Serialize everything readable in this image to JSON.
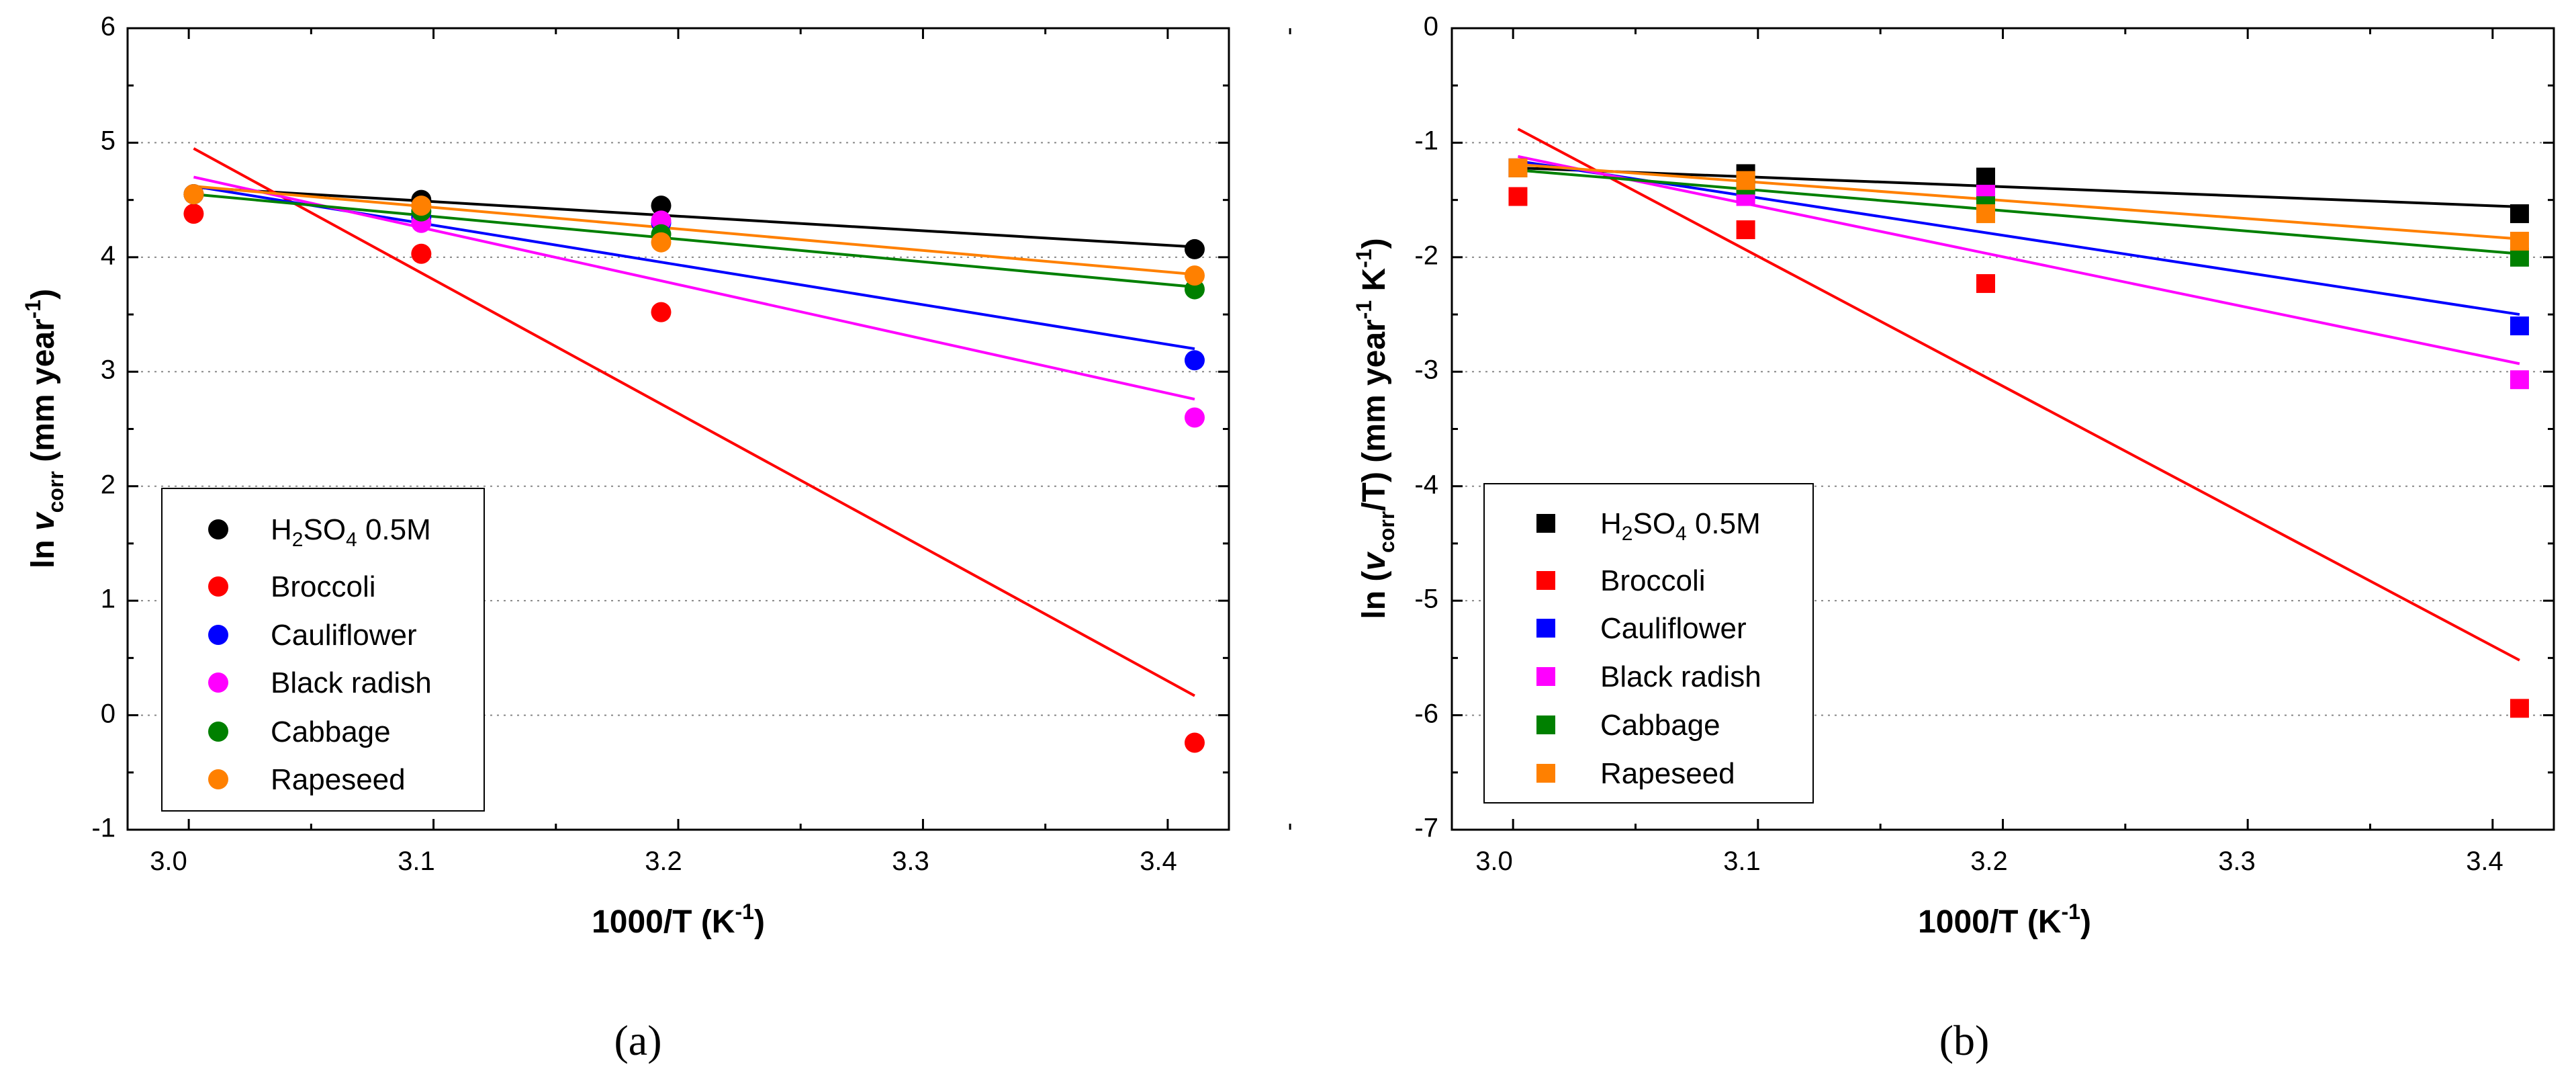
{
  "chart_data": [
    {
      "type": "scatter",
      "panel_label": "(a)",
      "xlabel": "1000/T (K",
      "xlabel_sup": "-1",
      "xlabel_tail": ")",
      "ylabel": {
        "pre": "ln ",
        "v": "v",
        "sub": "corr",
        "mid": " (mm year",
        "sup": "-1",
        "post": ")"
      },
      "xlim": [
        2.975,
        3.425
      ],
      "ylim": [
        -1,
        6
      ],
      "xticks": [
        "3.0",
        "3.1",
        "3.2",
        "3.3",
        "3.4"
      ],
      "yticks": [
        "-1",
        "0",
        "1",
        "2",
        "3",
        "4",
        "5",
        "6"
      ],
      "grid": "horizontal dotted",
      "marker": "circle",
      "x": [
        3.002,
        3.095,
        3.193,
        3.411
      ],
      "series": [
        {
          "name": "H2SO4 0.5M",
          "color": "#000000",
          "values": [
            4.55,
            4.5,
            4.45,
            4.07
          ],
          "fit": [
            4.61,
            4.09
          ]
        },
        {
          "name": "Broccoli",
          "color": "#ff0000",
          "values": [
            4.38,
            4.03,
            3.52,
            -0.24
          ],
          "fit": [
            4.95,
            0.17
          ]
        },
        {
          "name": "Cauliflower",
          "color": "#0000ff",
          "values": [
            4.55,
            4.35,
            4.3,
            3.1
          ],
          "fit": [
            4.62,
            3.2
          ]
        },
        {
          "name": "Black radish",
          "color": "#ff00ff",
          "values": [
            4.55,
            4.3,
            4.32,
            2.6
          ],
          "fit": [
            4.7,
            2.76
          ]
        },
        {
          "name": "Cabbage",
          "color": "#008000",
          "values": [
            4.55,
            4.4,
            4.2,
            3.72
          ],
          "fit": [
            4.55,
            3.74
          ]
        },
        {
          "name": "Rapeseed",
          "color": "#ff8000",
          "values": [
            4.55,
            4.45,
            4.13,
            3.84
          ],
          "fit": [
            4.62,
            3.85
          ]
        }
      ],
      "legend": {
        "h2so4_pre": "H",
        "h2so4_sub1": "2",
        "h2so4_mid": "SO",
        "h2so4_sub2": "4",
        "h2so4_post": " 0.5M",
        "position": "bottom-left"
      }
    },
    {
      "type": "scatter",
      "panel_label": "(b)",
      "xlabel": "1000/T (K",
      "xlabel_sup": "-1",
      "xlabel_tail": ")",
      "ylabel": {
        "pre": "ln (",
        "v": "v",
        "sub": "corr",
        "mid": "/T) (mm year",
        "sup": "-1",
        "mid2": " K",
        "sup2": "-1",
        "post": ")"
      },
      "xlim": [
        2.975,
        3.425
      ],
      "ylim": [
        -7,
        0
      ],
      "xticks": [
        "3.0",
        "3.1",
        "3.2",
        "3.3",
        "3.4"
      ],
      "yticks": [
        "-7",
        "-6",
        "-5",
        "-4",
        "-3",
        "-2",
        "-1",
        "0"
      ],
      "grid": "horizontal dotted",
      "marker": "square",
      "x": [
        3.002,
        3.095,
        3.193,
        3.411
      ],
      "series": [
        {
          "name": "H2SO4 0.5M",
          "color": "#000000",
          "values": [
            -1.22,
            -1.27,
            -1.3,
            -1.62
          ],
          "fit": [
            -1.22,
            -1.56
          ]
        },
        {
          "name": "Broccoli",
          "color": "#ff0000",
          "values": [
            -1.47,
            -1.76,
            -2.23,
            -5.94
          ],
          "fit": [
            -0.88,
            -5.52
          ]
        },
        {
          "name": "Cauliflower",
          "color": "#0000ff",
          "values": [
            -1.22,
            -1.42,
            -1.45,
            -2.6
          ],
          "fit": [
            -1.16,
            -2.5
          ]
        },
        {
          "name": "Black radish",
          "color": "#ff00ff",
          "values": [
            -1.22,
            -1.47,
            -1.45,
            -3.07
          ],
          "fit": [
            -1.12,
            -2.93
          ]
        },
        {
          "name": "Cabbage",
          "color": "#008000",
          "values": [
            -1.22,
            -1.37,
            -1.55,
            -2.0
          ],
          "fit": [
            -1.24,
            -1.97
          ]
        },
        {
          "name": "Rapeseed",
          "color": "#ff8000",
          "values": [
            -1.22,
            -1.33,
            -1.62,
            -1.86
          ],
          "fit": [
            -1.19,
            -1.84
          ]
        }
      ],
      "legend": {
        "h2so4_pre": "H",
        "h2so4_sub1": "2",
        "h2so4_mid": "SO",
        "h2so4_sub2": "4",
        "h2so4_post": " 0.5M",
        "position": "bottom-left"
      }
    }
  ]
}
